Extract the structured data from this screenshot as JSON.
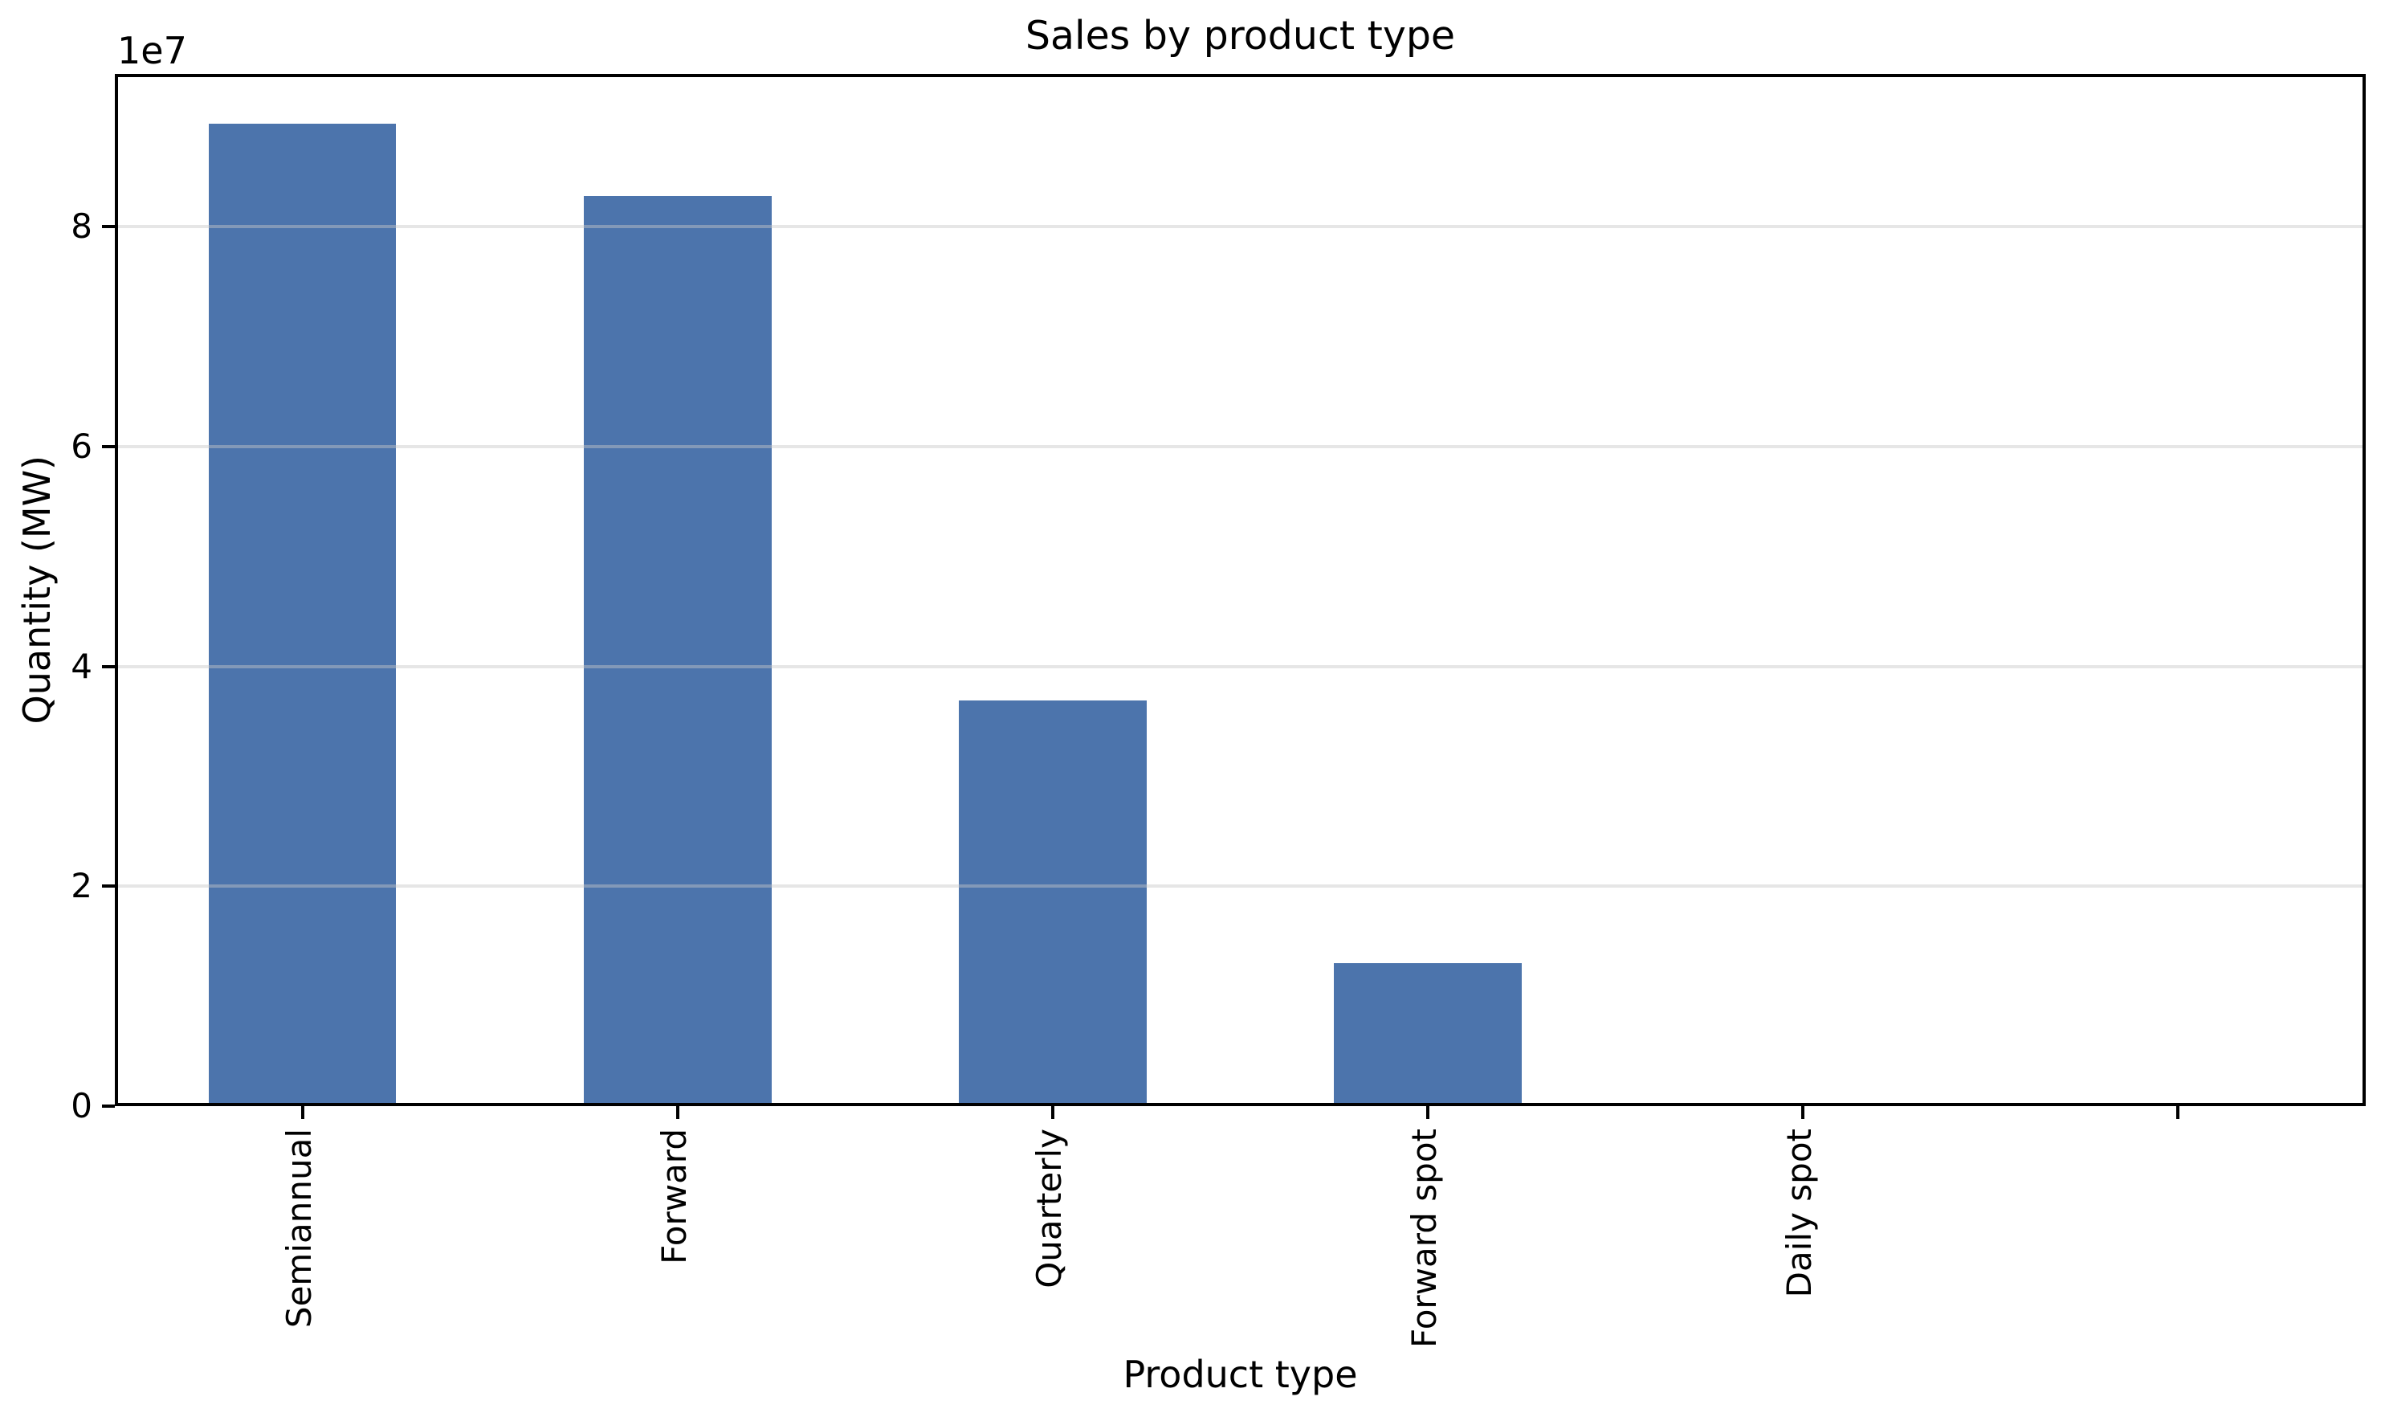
{
  "chart_data": {
    "type": "bar",
    "title": "Sales by product type",
    "xlabel": "Product type",
    "ylabel": "Quantity (MW)",
    "categories": [
      "Semiannual",
      "Forward",
      "Quarterly",
      "Forward spot",
      "Daily spot",
      ""
    ],
    "values": [
      89400000,
      82800000,
      36900000,
      13000000,
      0,
      0
    ],
    "bar_color": "#4C74AC",
    "bar_width_fraction": 0.5,
    "ylim": [
      0,
      93900000
    ],
    "yticks": [
      0,
      20000000,
      40000000,
      60000000,
      80000000
    ],
    "ytick_labels": [
      "0",
      "2",
      "4",
      "6",
      "8"
    ],
    "scale_offset_text": "1e7",
    "grid": "horizontal-only, translucent gray, drawn above bars",
    "grid_color": "#e6e6e6",
    "legend": "none",
    "background_color": "#ffffff",
    "spine_color": "#000000"
  }
}
